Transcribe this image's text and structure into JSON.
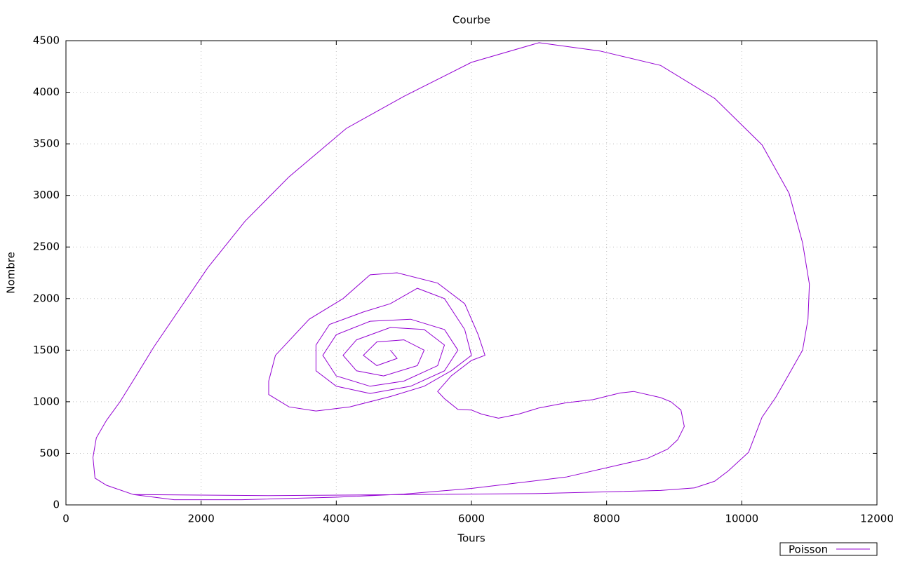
{
  "chart_data": {
    "type": "line",
    "title": "Courbe",
    "x_label": "Tours",
    "y_label": "Nombre",
    "xlim": [
      0,
      12000
    ],
    "ylim": [
      0,
      4500
    ],
    "xticks": [
      0,
      2000,
      4000,
      6000,
      8000,
      10000,
      12000
    ],
    "yticks": [
      0,
      500,
      1000,
      1500,
      2000,
      2500,
      3000,
      3500,
      4000,
      4500
    ],
    "grid": true,
    "legend": "bottom-right",
    "series": [
      {
        "name": "Poisson",
        "color": "#9400d3",
        "x": [
          1000,
          600,
          430,
          400,
          450,
          600,
          800,
          1000,
          1300,
          2100,
          2650,
          3300,
          4150,
          5000,
          6000,
          7000,
          7900,
          8800,
          9600,
          10300,
          10700,
          10900,
          11000,
          10980,
          10900,
          10700,
          10500,
          10300,
          10100,
          9800,
          9600,
          9300,
          8800,
          7000,
          5000,
          3000,
          1000,
          1600,
          2600,
          4000,
          5000,
          6000,
          7400,
          8200,
          8600,
          8900,
          9050,
          9150,
          9100,
          8950,
          8800,
          8400,
          8200,
          7800,
          7400,
          7000,
          6700,
          6400,
          6150,
          6000,
          5800,
          5600,
          5500,
          5700,
          6000,
          6200,
          6100,
          5900,
          5500,
          4900,
          4500,
          4100,
          3600,
          3100,
          3000,
          3000,
          3300,
          3700,
          4200,
          4800,
          5300,
          5700,
          6000,
          5900,
          5600,
          5200,
          4800,
          4400,
          3900,
          3700,
          3700,
          4000,
          4500,
          5100,
          5600,
          5800,
          5600,
          5100,
          4500,
          4000,
          3800,
          4000,
          4500,
          5000,
          5500,
          5600,
          5300,
          4800,
          4300,
          4100,
          4300,
          4700,
          5200,
          5300,
          5000,
          4600,
          4400,
          4600,
          4900,
          4800
        ],
        "values": [
          100,
          190,
          260,
          460,
          650,
          820,
          1000,
          1210,
          1530,
          2300,
          2750,
          3180,
          3650,
          3960,
          4290,
          4480,
          4400,
          4260,
          3940,
          3490,
          3020,
          2540,
          2140,
          1800,
          1500,
          1270,
          1040,
          850,
          510,
          330,
          230,
          165,
          140,
          110,
          100,
          90,
          100,
          50,
          50,
          75,
          105,
          160,
          270,
          390,
          450,
          540,
          630,
          760,
          920,
          1000,
          1040,
          1100,
          1085,
          1020,
          990,
          940,
          880,
          840,
          880,
          920,
          925,
          1030,
          1100,
          1250,
          1400,
          1450,
          1650,
          1950,
          2150,
          2250,
          2230,
          2000,
          1800,
          1450,
          1200,
          1070,
          950,
          910,
          950,
          1050,
          1150,
          1300,
          1450,
          1700,
          2000,
          2100,
          1950,
          1870,
          1750,
          1550,
          1300,
          1150,
          1080,
          1150,
          1300,
          1500,
          1700,
          1800,
          1780,
          1650,
          1450,
          1250,
          1150,
          1200,
          1350,
          1550,
          1700,
          1720,
          1600,
          1450,
          1300,
          1250,
          1350,
          1500,
          1600,
          1580,
          1450,
          1350,
          1420,
          1500
        ]
      }
    ]
  }
}
